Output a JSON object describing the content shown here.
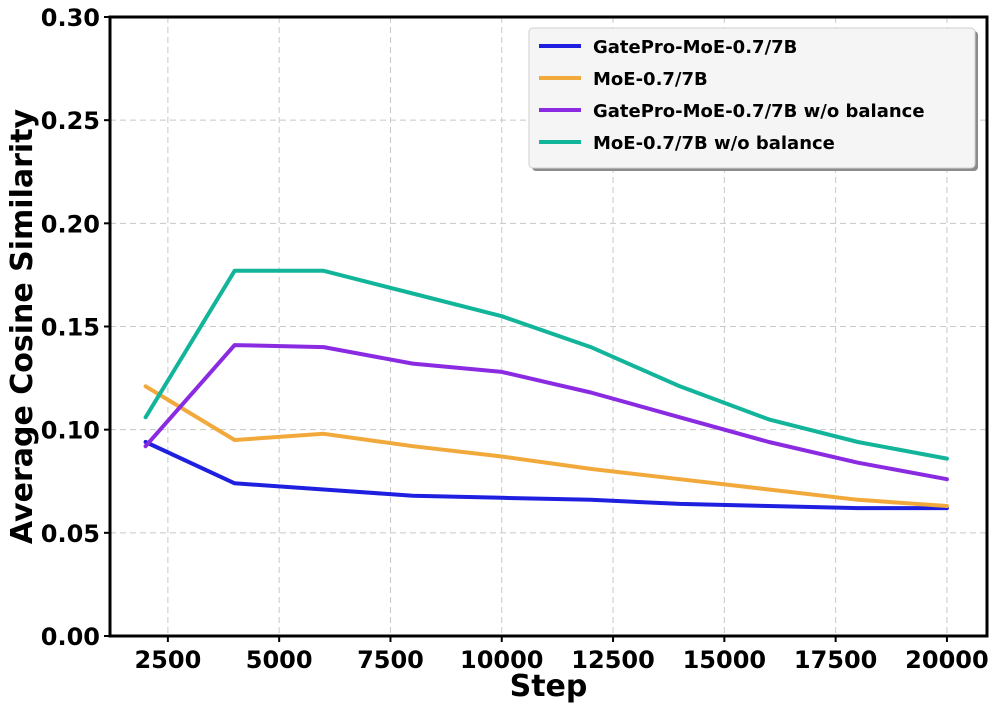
{
  "chart_data": {
    "type": "line",
    "title": "",
    "xlabel": "Step",
    "ylabel": "Average Cosine Similarity",
    "xlim": [
      1200,
      20900
    ],
    "ylim": [
      0.0,
      0.3
    ],
    "xticks": [
      2500,
      5000,
      7500,
      10000,
      12500,
      15000,
      17500,
      20000
    ],
    "yticks": [
      0.0,
      0.05,
      0.1,
      0.15,
      0.2,
      0.25,
      0.3
    ],
    "xtick_labels": [
      "2500",
      "5000",
      "7500",
      "10000",
      "12500",
      "15000",
      "17500",
      "20000"
    ],
    "ytick_labels": [
      "0.00",
      "0.05",
      "0.10",
      "0.15",
      "0.20",
      "0.25",
      "0.30"
    ],
    "grid": true,
    "legend_position": "top-right",
    "x": [
      2000,
      4000,
      6000,
      8000,
      10000,
      12000,
      14000,
      16000,
      18000,
      20000
    ],
    "series": [
      {
        "name": "GatePro-MoE-0.7/7B",
        "color": "#1f1fe0",
        "values": [
          0.094,
          0.074,
          0.071,
          0.068,
          0.067,
          0.066,
          0.064,
          0.063,
          0.062,
          0.062
        ]
      },
      {
        "name": "MoE-0.7/7B",
        "color": "#f2a93b",
        "values": [
          0.121,
          0.095,
          0.098,
          0.092,
          0.087,
          0.081,
          0.076,
          0.071,
          0.066,
          0.063
        ]
      },
      {
        "name": "GatePro-MoE-0.7/7B w/o balance",
        "color": "#8a2be2",
        "values": [
          0.092,
          0.141,
          0.14,
          0.132,
          0.128,
          0.118,
          0.106,
          0.094,
          0.084,
          0.076
        ]
      },
      {
        "name": "MoE-0.7/7B w/o balance",
        "color": "#13b59a",
        "values": [
          0.106,
          0.177,
          0.177,
          0.166,
          0.155,
          0.14,
          0.121,
          0.105,
          0.094,
          0.086
        ]
      }
    ]
  }
}
